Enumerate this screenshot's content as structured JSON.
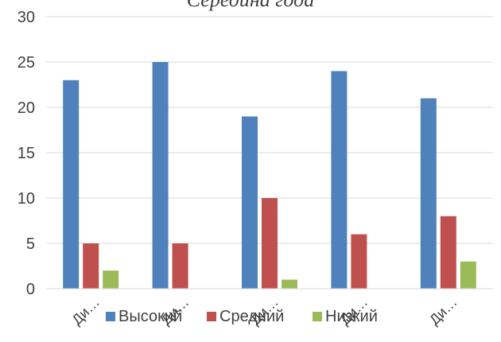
{
  "chart_data": {
    "type": "bar",
    "title": "Середина года",
    "categories": [
      "Ди…",
      "Ди…",
      "Ди…",
      "Ди…",
      "Ди…"
    ],
    "series": [
      {
        "name": "Высокий",
        "color": "#4F81BD",
        "values": [
          23,
          25,
          19,
          24,
          21
        ]
      },
      {
        "name": "Средний",
        "color": "#C0504D",
        "values": [
          5,
          5,
          10,
          6,
          8
        ]
      },
      {
        "name": "Низкий",
        "color": "#9BBB59",
        "values": [
          2,
          0,
          1,
          0,
          3
        ]
      }
    ],
    "ylim": [
      0,
      30
    ],
    "yticks": [
      0,
      5,
      10,
      15,
      20,
      25,
      30
    ],
    "grid": true,
    "legend": "bottom"
  }
}
